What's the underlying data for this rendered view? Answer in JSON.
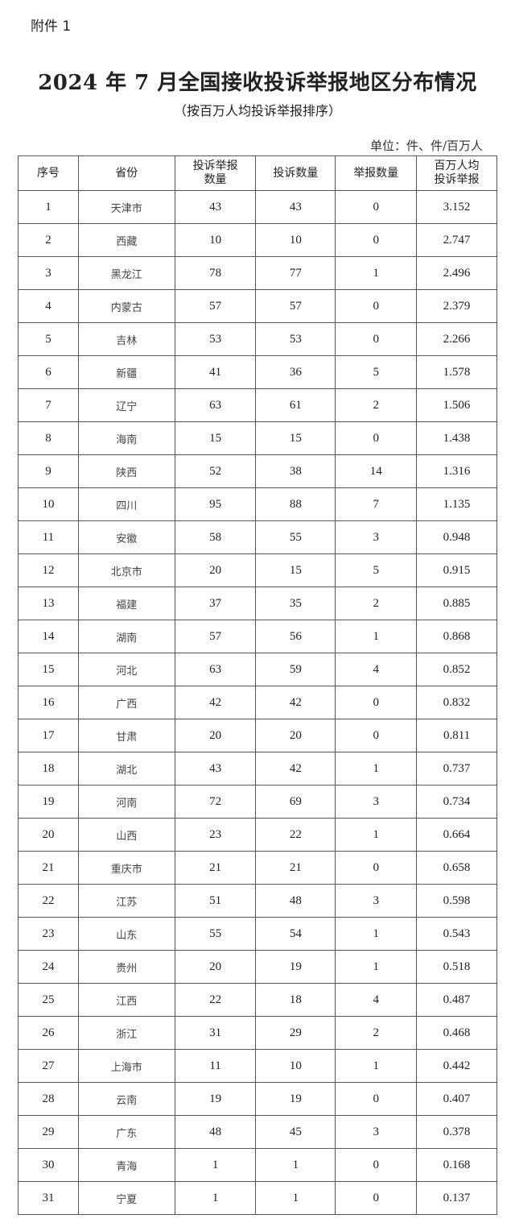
{
  "attachment_label": "附件 1",
  "title": "2024 年 7 月全国接收投诉举报地区分布情况",
  "subtitle": "（按百万人均投诉举报排序）",
  "unit": "单位：件、件/百万人",
  "table": {
    "headers": [
      "序号",
      "省份",
      "投诉举报数量",
      "投诉数量",
      "举报数量",
      "百万人均投诉举报"
    ],
    "header_lines": [
      [
        "序号"
      ],
      [
        "省份"
      ],
      [
        "投诉举报",
        "数量"
      ],
      [
        "投诉数量"
      ],
      [
        "举报数量"
      ],
      [
        "百万人均",
        "投诉举报"
      ]
    ],
    "rows": [
      [
        "1",
        "天津市",
        "43",
        "43",
        "0",
        "3.152"
      ],
      [
        "2",
        "西藏",
        "10",
        "10",
        "0",
        "2.747"
      ],
      [
        "3",
        "黑龙江",
        "78",
        "77",
        "1",
        "2.496"
      ],
      [
        "4",
        "内蒙古",
        "57",
        "57",
        "0",
        "2.379"
      ],
      [
        "5",
        "吉林",
        "53",
        "53",
        "0",
        "2.266"
      ],
      [
        "6",
        "新疆",
        "41",
        "36",
        "5",
        "1.578"
      ],
      [
        "7",
        "辽宁",
        "63",
        "61",
        "2",
        "1.506"
      ],
      [
        "8",
        "海南",
        "15",
        "15",
        "0",
        "1.438"
      ],
      [
        "9",
        "陕西",
        "52",
        "38",
        "14",
        "1.316"
      ],
      [
        "10",
        "四川",
        "95",
        "88",
        "7",
        "1.135"
      ],
      [
        "11",
        "安徽",
        "58",
        "55",
        "3",
        "0.948"
      ],
      [
        "12",
        "北京市",
        "20",
        "15",
        "5",
        "0.915"
      ],
      [
        "13",
        "福建",
        "37",
        "35",
        "2",
        "0.885"
      ],
      [
        "14",
        "湖南",
        "57",
        "56",
        "1",
        "0.868"
      ],
      [
        "15",
        "河北",
        "63",
        "59",
        "4",
        "0.852"
      ],
      [
        "16",
        "广西",
        "42",
        "42",
        "0",
        "0.832"
      ],
      [
        "17",
        "甘肃",
        "20",
        "20",
        "0",
        "0.811"
      ],
      [
        "18",
        "湖北",
        "43",
        "42",
        "1",
        "0.737"
      ],
      [
        "19",
        "河南",
        "72",
        "69",
        "3",
        "0.734"
      ],
      [
        "20",
        "山西",
        "23",
        "22",
        "1",
        "0.664"
      ],
      [
        "21",
        "重庆市",
        "21",
        "21",
        "0",
        "0.658"
      ],
      [
        "22",
        "江苏",
        "51",
        "48",
        "3",
        "0.598"
      ],
      [
        "23",
        "山东",
        "55",
        "54",
        "1",
        "0.543"
      ],
      [
        "24",
        "贵州",
        "20",
        "19",
        "1",
        "0.518"
      ],
      [
        "25",
        "江西",
        "22",
        "18",
        "4",
        "0.487"
      ],
      [
        "26",
        "浙江",
        "31",
        "29",
        "2",
        "0.468"
      ],
      [
        "27",
        "上海市",
        "11",
        "10",
        "1",
        "0.442"
      ],
      [
        "28",
        "云南",
        "19",
        "19",
        "0",
        "0.407"
      ],
      [
        "29",
        "广东",
        "48",
        "45",
        "3",
        "0.378"
      ],
      [
        "30",
        "青海",
        "1",
        "1",
        "0",
        "0.168"
      ],
      [
        "31",
        "宁夏",
        "1",
        "1",
        "0",
        "0.137"
      ]
    ]
  }
}
